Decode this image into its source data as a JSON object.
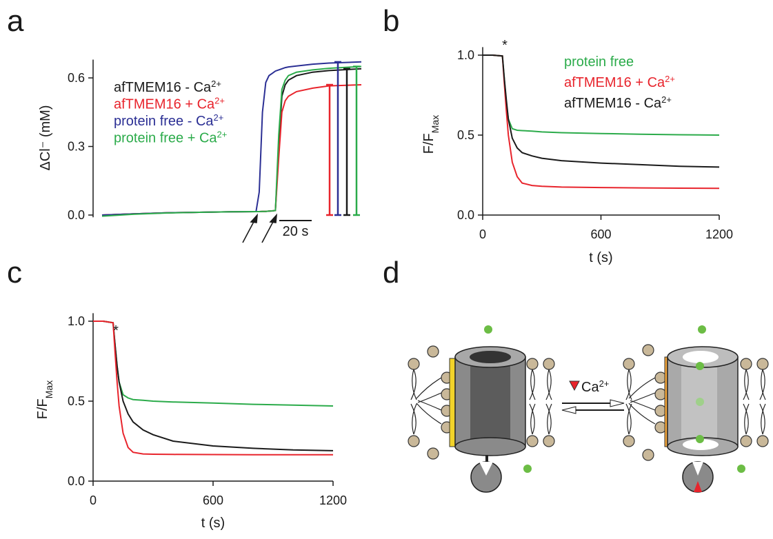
{
  "chart_data": [
    {
      "type": "line",
      "panel": "a",
      "ylabel": "ΔCl⁻ (mM)",
      "ylim": [
        -0.01,
        0.68
      ],
      "yticks": [
        {
          "value": 0,
          "label": "0.0"
        },
        {
          "value": 0.3,
          "label": "0.3"
        },
        {
          "value": 0.6,
          "label": "0.6"
        }
      ],
      "xlim": [
        0,
        160
      ],
      "scalebar": {
        "value": 20,
        "label": "20 s"
      },
      "x": [
        0,
        20,
        40,
        60,
        80,
        95,
        97,
        99,
        101,
        103,
        105,
        107,
        109,
        111,
        113,
        115,
        120,
        130,
        140,
        160
      ],
      "series": [
        {
          "name": "afTMEM16 - Ca2+",
          "color": "#1a1a1a",
          "values": [
            0,
            0.005,
            0.01,
            0.012,
            0.014,
            0.015,
            0.015,
            0.016,
            0.016,
            0.017,
            0.018,
            0.02,
            0.3,
            0.52,
            0.57,
            0.59,
            0.61,
            0.625,
            0.632,
            0.64
          ]
        },
        {
          "name": "afTMEM16 + Ca2+",
          "color": "#e8242c",
          "values": [
            0,
            0.005,
            0.01,
            0.012,
            0.014,
            0.015,
            0.015,
            0.016,
            0.016,
            0.017,
            0.018,
            0.02,
            0.25,
            0.45,
            0.5,
            0.52,
            0.54,
            0.555,
            0.565,
            0.57
          ]
        },
        {
          "name": "protein free - Ca2+",
          "color": "#2b2f94",
          "values": [
            0,
            0.005,
            0.01,
            0.012,
            0.014,
            0.015,
            0.1,
            0.45,
            0.58,
            0.61,
            0.62,
            0.63,
            0.635,
            0.64,
            0.645,
            0.648,
            0.652,
            0.66,
            0.665,
            0.67
          ]
        },
        {
          "name": "protein free + Ca2+",
          "color": "#2bab4a",
          "values": [
            -0.005,
            0.004,
            0.009,
            0.012,
            0.014,
            0.015,
            0.015,
            0.016,
            0.016,
            0.017,
            0.018,
            0.02,
            0.35,
            0.55,
            0.59,
            0.61,
            0.625,
            0.635,
            0.642,
            0.65
          ]
        }
      ]
    },
    {
      "type": "line",
      "panel": "b",
      "ylabel": "F/F",
      "ylabel_sub": "Max",
      "xlabel": "t (s)",
      "annotation": "*",
      "xlim": [
        0,
        1200
      ],
      "xticks": [
        0,
        600,
        1200
      ],
      "ylim": [
        0,
        1.05
      ],
      "yticks": [
        {
          "value": 0,
          "label": "0.0"
        },
        {
          "value": 0.5,
          "label": "0.5"
        },
        {
          "value": 1,
          "label": "1.0"
        }
      ],
      "x": [
        0,
        50,
        100,
        110,
        120,
        130,
        150,
        175,
        200,
        250,
        300,
        400,
        600,
        800,
        1000,
        1200
      ],
      "series": [
        {
          "name": "protein free",
          "color": "#2bab4a",
          "values": [
            1,
            1,
            0.995,
            0.85,
            0.7,
            0.6,
            0.54,
            0.53,
            0.528,
            0.525,
            0.52,
            0.515,
            0.51,
            0.505,
            0.502,
            0.5
          ]
        },
        {
          "name": "afTMEM16 + Ca2+",
          "color": "#e8242c",
          "values": [
            1,
            1,
            0.995,
            0.82,
            0.65,
            0.5,
            0.33,
            0.24,
            0.2,
            0.185,
            0.18,
            0.175,
            0.172,
            0.17,
            0.168,
            0.167
          ]
        },
        {
          "name": "afTMEM16 - Ca2+",
          "color": "#1a1a1a",
          "values": [
            1,
            1,
            0.995,
            0.85,
            0.72,
            0.6,
            0.48,
            0.42,
            0.39,
            0.37,
            0.355,
            0.34,
            0.325,
            0.315,
            0.305,
            0.3
          ]
        }
      ]
    },
    {
      "type": "line",
      "panel": "c",
      "ylabel": "F/F",
      "ylabel_sub": "Max",
      "xlabel": "t (s)",
      "annotation": "*",
      "xlim": [
        0,
        1200
      ],
      "xticks": [
        0,
        600,
        1200
      ],
      "ylim": [
        0,
        1.05
      ],
      "yticks": [
        {
          "value": 0,
          "label": "0.0"
        },
        {
          "value": 0.5,
          "label": "0.5"
        },
        {
          "value": 1,
          "label": "1.0"
        }
      ],
      "x": [
        0,
        50,
        100,
        110,
        120,
        130,
        150,
        175,
        200,
        250,
        300,
        400,
        600,
        800,
        1000,
        1200
      ],
      "series": [
        {
          "color": "#2bab4a",
          "values": [
            1,
            1,
            0.99,
            0.85,
            0.72,
            0.62,
            0.54,
            0.52,
            0.51,
            0.505,
            0.5,
            0.495,
            0.488,
            0.48,
            0.475,
            0.47
          ]
        },
        {
          "color": "#1a1a1a",
          "values": [
            1,
            1,
            0.99,
            0.85,
            0.72,
            0.62,
            0.5,
            0.42,
            0.37,
            0.32,
            0.29,
            0.25,
            0.22,
            0.205,
            0.195,
            0.19
          ]
        },
        {
          "color": "#e8242c",
          "values": [
            1,
            1,
            0.99,
            0.8,
            0.62,
            0.47,
            0.3,
            0.21,
            0.18,
            0.17,
            0.168,
            0.167,
            0.166,
            0.165,
            0.165,
            0.165
          ]
        }
      ]
    }
  ],
  "diagram": {
    "panel": "d",
    "text": "Ca2+"
  }
}
